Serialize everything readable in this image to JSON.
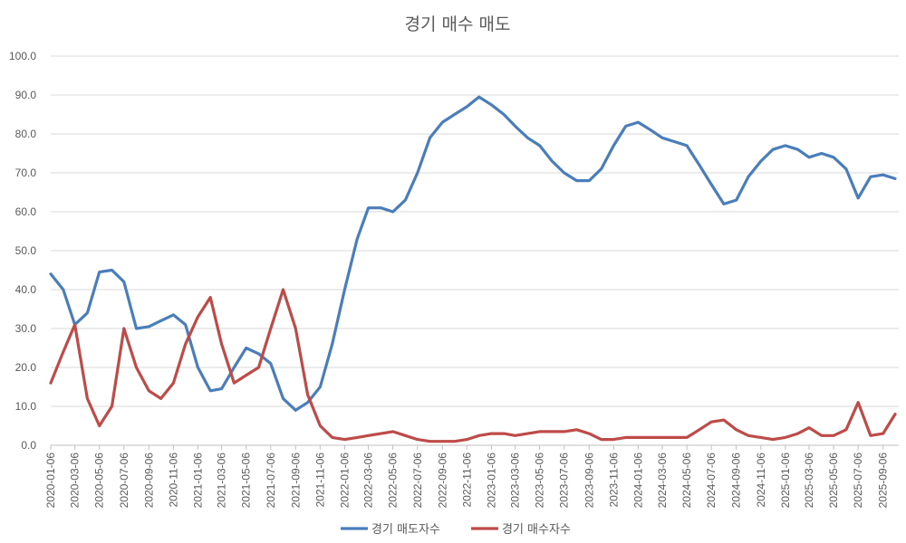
{
  "chart_data": {
    "type": "line",
    "title": "경기 매수 매도",
    "xlabel": "",
    "ylabel": "",
    "ylim": [
      0,
      100
    ],
    "y_ticks": [
      "0.0",
      "10.0",
      "20.0",
      "30.0",
      "40.0",
      "50.0",
      "60.0",
      "70.0",
      "80.0",
      "90.0",
      "100.0"
    ],
    "x_tick_labels": [
      "2020-01-06",
      "2020-03-06",
      "2020-05-06",
      "2020-07-06",
      "2020-09-06",
      "2020-11-06",
      "2021-01-06",
      "2021-03-06",
      "2021-05-06",
      "2021-07-06",
      "2021-09-06",
      "2021-11-06",
      "2022-01-06",
      "2022-03-06",
      "2022-05-06",
      "2022-07-06",
      "2022-09-06",
      "2022-11-06",
      "2023-01-06",
      "2023-03-06",
      "2023-05-06",
      "2023-07-06",
      "2023-09-06",
      "2023-11-06",
      "2024-01-06",
      "2024-03-06",
      "2024-05-06",
      "2024-07-06",
      "2024-09-06",
      "2024-11-06",
      "2025-01-06",
      "2025-03-06",
      "2025-05-06",
      "2025-07-06",
      "2025-09-06"
    ],
    "grid": true,
    "legend_position": "bottom",
    "x": [
      "2020-01-06",
      "2020-02-06",
      "2020-03-06",
      "2020-04-06",
      "2020-05-06",
      "2020-06-06",
      "2020-07-06",
      "2020-08-06",
      "2020-09-06",
      "2020-10-06",
      "2020-11-06",
      "2020-12-06",
      "2021-01-06",
      "2021-02-06",
      "2021-03-06",
      "2021-04-06",
      "2021-05-06",
      "2021-06-06",
      "2021-07-06",
      "2021-08-06",
      "2021-09-06",
      "2021-10-06",
      "2021-11-06",
      "2021-12-06",
      "2022-01-06",
      "2022-02-06",
      "2022-03-06",
      "2022-04-06",
      "2022-05-06",
      "2022-06-06",
      "2022-07-06",
      "2022-08-06",
      "2022-09-06",
      "2022-10-06",
      "2022-11-06",
      "2022-12-06",
      "2023-01-06",
      "2023-02-06",
      "2023-03-06",
      "2023-04-06",
      "2023-05-06",
      "2023-06-06",
      "2023-07-06",
      "2023-08-06",
      "2023-09-06",
      "2023-10-06",
      "2023-11-06",
      "2023-12-06",
      "2024-01-06",
      "2024-02-06",
      "2024-03-06",
      "2024-04-06",
      "2024-05-06",
      "2024-06-06",
      "2024-07-06",
      "2024-08-06",
      "2024-09-06",
      "2024-10-06",
      "2024-11-06",
      "2024-12-06",
      "2025-01-06",
      "2025-02-06",
      "2025-03-06",
      "2025-04-06",
      "2025-05-06",
      "2025-06-06",
      "2025-07-06",
      "2025-08-06",
      "2025-09-06",
      "2025-10-06"
    ],
    "series": [
      {
        "name": "경기 매도자수",
        "color": "#4a7ebb",
        "values": [
          44.0,
          40.0,
          31.0,
          34.0,
          44.5,
          45.0,
          42.0,
          30.0,
          30.5,
          32.0,
          33.5,
          31.0,
          20.0,
          14.0,
          14.5,
          20.0,
          25.0,
          23.5,
          21.0,
          12.0,
          9.0,
          11.0,
          15.0,
          26.0,
          40.0,
          53.0,
          61.0,
          61.0,
          60.0,
          63.0,
          70.0,
          79.0,
          83.0,
          85.0,
          87.0,
          89.5,
          87.5,
          85.0,
          82.0,
          79.0,
          77.0,
          73.0,
          70.0,
          68.0,
          68.0,
          71.0,
          77.0,
          82.0,
          83.0,
          81.0,
          79.0,
          78.0,
          77.0,
          72.0,
          67.0,
          62.0,
          63.0,
          69.0,
          73.0,
          76.0,
          77.0,
          76.0,
          74.0,
          75.0,
          74.0,
          71.0,
          63.5,
          69.0,
          69.5,
          68.5
        ]
      },
      {
        "name": "경기 매수자수",
        "color": "#be4b48",
        "values": [
          16.0,
          24.0,
          31.0,
          12.0,
          5.0,
          10.0,
          30.0,
          20.0,
          14.0,
          12.0,
          16.0,
          26.0,
          33.0,
          38.0,
          26.0,
          16.0,
          18.0,
          20.0,
          30.0,
          40.0,
          30.0,
          13.0,
          5.0,
          2.0,
          1.5,
          2.0,
          2.5,
          3.0,
          3.5,
          2.5,
          1.5,
          1.0,
          1.0,
          1.0,
          1.5,
          2.5,
          3.0,
          3.0,
          2.5,
          3.0,
          3.5,
          3.5,
          3.5,
          4.0,
          3.0,
          1.5,
          1.5,
          2.0,
          2.0,
          2.0,
          2.0,
          2.0,
          2.0,
          4.0,
          6.0,
          6.5,
          4.0,
          2.5,
          2.0,
          1.5,
          2.0,
          3.0,
          4.5,
          2.5,
          2.5,
          4.0,
          11.0,
          2.5,
          3.0,
          8.0
        ]
      }
    ]
  }
}
